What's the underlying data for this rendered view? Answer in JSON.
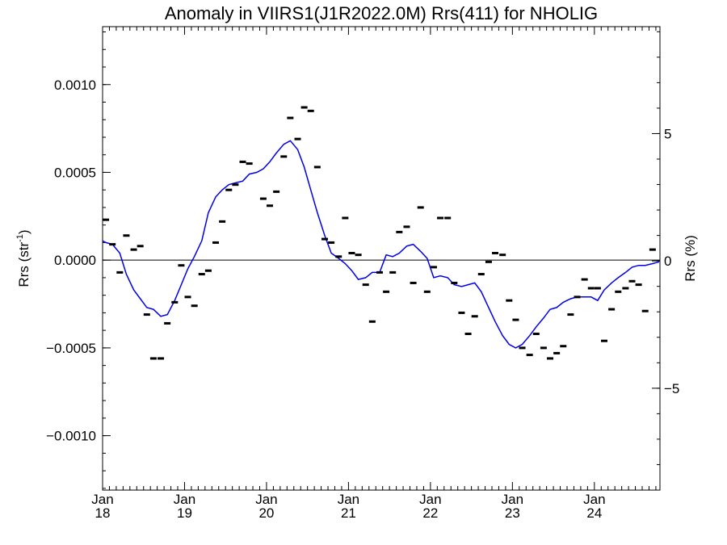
{
  "chart_data": {
    "type": "line",
    "title": "Anomaly in VIIRS1(J1R2022.0M) Rrs(411) for NHOLIG",
    "ylabel_left": {
      "base": "Rrs (str",
      "sup": "-1",
      "close": ")"
    },
    "ylabel_right": "Rrs (%)",
    "x_axis": {
      "range": [
        2018.0,
        2024.8
      ],
      "ticks": [
        {
          "x": 2018,
          "month": "Jan",
          "year": "18"
        },
        {
          "x": 2019,
          "month": "Jan",
          "year": "19"
        },
        {
          "x": 2020,
          "month": "Jan",
          "year": "20"
        },
        {
          "x": 2021,
          "month": "Jan",
          "year": "21"
        },
        {
          "x": 2022,
          "month": "Jan",
          "year": "22"
        },
        {
          "x": 2023,
          "month": "Jan",
          "year": "23"
        },
        {
          "x": 2024,
          "month": "Jan",
          "year": "24"
        }
      ]
    },
    "y_left": {
      "range": [
        -0.00131,
        0.00133
      ],
      "ticks": [
        {
          "v": 0.001,
          "label": "0.0010"
        },
        {
          "v": 0.0005,
          "label": "0.0005"
        },
        {
          "v": 0.0,
          "label": "0.0000"
        },
        {
          "v": -0.0005,
          "label": "−0.0005"
        },
        {
          "v": -0.001,
          "label": "−0.0010"
        }
      ]
    },
    "y_right": {
      "range": [
        -9.0,
        9.2
      ],
      "ticks": [
        {
          "v": 5,
          "label": "5"
        },
        {
          "v": 0,
          "label": "0"
        },
        {
          "v": -5,
          "label": "−5"
        }
      ]
    },
    "zero_line": true,
    "colors": {
      "line": "#0000ee",
      "points": "#000000",
      "axes": "#000000"
    },
    "series": [
      {
        "type": "points",
        "x": [
          2018.04,
          2018.12,
          2018.21,
          2018.29,
          2018.38,
          2018.46,
          2018.54,
          2018.62,
          2018.71,
          2018.79,
          2018.88,
          2018.96,
          2019.04,
          2019.12,
          2019.21,
          2019.29,
          2019.38,
          2019.46,
          2019.54,
          2019.62,
          2019.71,
          2019.79,
          2019.96,
          2020.04,
          2020.12,
          2020.21,
          2020.29,
          2020.38,
          2020.46,
          2020.54,
          2020.62,
          2020.71,
          2020.79,
          2020.88,
          2020.96,
          2021.04,
          2021.12,
          2021.21,
          2021.29,
          2021.38,
          2021.46,
          2021.54,
          2021.62,
          2021.71,
          2021.79,
          2021.88,
          2021.96,
          2022.04,
          2022.12,
          2022.21,
          2022.29,
          2022.38,
          2022.46,
          2022.54,
          2022.62,
          2022.71,
          2022.79,
          2022.88,
          2022.96,
          2023.04,
          2023.12,
          2023.21,
          2023.29,
          2023.38,
          2023.46,
          2023.54,
          2023.62,
          2023.71,
          2023.79,
          2023.88,
          2023.96,
          2024.04,
          2024.12,
          2024.21,
          2024.29,
          2024.38,
          2024.46,
          2024.54,
          2024.62,
          2024.71
        ],
        "y": [
          0.00023,
          9e-05,
          -7e-05,
          0.00014,
          6e-05,
          8e-05,
          -0.00031,
          -0.00056,
          -0.00056,
          -0.00036,
          -0.00024,
          -3e-05,
          -0.00021,
          -0.00026,
          -8e-05,
          -6e-05,
          0.0001,
          0.00022,
          0.0004,
          0.00043,
          0.00056,
          0.00055,
          0.00035,
          0.00031,
          0.00039,
          0.00059,
          0.00081,
          0.00069,
          0.00087,
          0.00085,
          0.00053,
          0.00012,
          0.0001,
          2e-05,
          0.00024,
          4e-05,
          3e-05,
          -0.00014,
          -0.00035,
          -7e-05,
          -0.00018,
          -7e-05,
          0.00016,
          0.00019,
          -0.00013,
          0.0003,
          -0.00018,
          -4e-05,
          0.00024,
          0.00024,
          -0.00013,
          -0.0003,
          -0.00042,
          -0.00032,
          -8e-05,
          -1e-05,
          4e-05,
          3e-05,
          -0.00023,
          -0.00034,
          -0.0005,
          -0.00054,
          -0.00042,
          -0.0005,
          -0.00056,
          -0.00053,
          -0.00049,
          -0.00031,
          -0.00021,
          -0.00011,
          -0.00016,
          -0.00016,
          -0.00046,
          -0.00028,
          -0.00018,
          -0.00016,
          -0.00012,
          -0.00014,
          -0.00029,
          6e-05
        ]
      },
      {
        "type": "line",
        "x": [
          2018.0,
          2018.04,
          2018.12,
          2018.21,
          2018.29,
          2018.38,
          2018.46,
          2018.54,
          2018.62,
          2018.71,
          2018.79,
          2018.88,
          2018.96,
          2019.04,
          2019.12,
          2019.21,
          2019.29,
          2019.38,
          2019.46,
          2019.54,
          2019.62,
          2019.71,
          2019.79,
          2019.88,
          2019.96,
          2020.04,
          2020.12,
          2020.21,
          2020.29,
          2020.38,
          2020.46,
          2020.54,
          2020.62,
          2020.71,
          2020.79,
          2020.88,
          2020.96,
          2021.04,
          2021.12,
          2021.21,
          2021.29,
          2021.38,
          2021.46,
          2021.54,
          2021.62,
          2021.71,
          2021.79,
          2021.88,
          2021.96,
          2022.04,
          2022.12,
          2022.21,
          2022.29,
          2022.38,
          2022.46,
          2022.54,
          2022.62,
          2022.71,
          2022.79,
          2022.88,
          2022.96,
          2023.04,
          2023.12,
          2023.21,
          2023.29,
          2023.38,
          2023.46,
          2023.54,
          2023.62,
          2023.71,
          2023.79,
          2023.88,
          2023.96,
          2024.04,
          2024.12,
          2024.21,
          2024.29,
          2024.38,
          2024.46,
          2024.54,
          2024.62,
          2024.71,
          2024.79
        ],
        "y": [
          0.00011,
          0.0001,
          9e-05,
          4e-05,
          -8e-05,
          -0.00017,
          -0.00022,
          -0.00027,
          -0.00028,
          -0.00032,
          -0.00031,
          -0.00023,
          -0.00014,
          -5e-05,
          2e-05,
          0.00011,
          0.00027,
          0.00036,
          0.0004,
          0.00043,
          0.00044,
          0.00045,
          0.00049,
          0.0005,
          0.00052,
          0.00056,
          0.00061,
          0.00066,
          0.00068,
          0.00063,
          0.00053,
          0.0004,
          0.00027,
          0.00014,
          4e-05,
          1e-05,
          -2e-05,
          -6e-05,
          -0.00011,
          -0.0001,
          -7e-05,
          -7e-05,
          3e-05,
          2e-05,
          4e-05,
          8e-05,
          9e-05,
          5e-05,
          1e-05,
          -0.0001,
          -9e-05,
          -0.0001,
          -0.00014,
          -0.00015,
          -0.00014,
          -0.00013,
          -0.00018,
          -0.00027,
          -0.00035,
          -0.00043,
          -0.00048,
          -0.0005,
          -0.00048,
          -0.00043,
          -0.00038,
          -0.00033,
          -0.00028,
          -0.00027,
          -0.00024,
          -0.00022,
          -0.00021,
          -0.00021,
          -0.00021,
          -0.00023,
          -0.00017,
          -0.00013,
          -0.0001,
          -7e-05,
          -4e-05,
          -3e-05,
          -3e-05,
          -2e-05,
          -1e-05
        ]
      }
    ]
  }
}
